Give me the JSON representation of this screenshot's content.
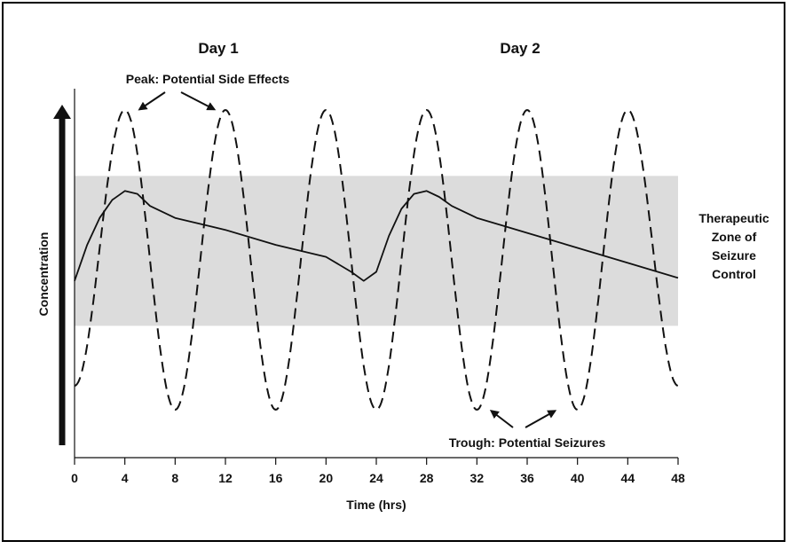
{
  "chart_data": {
    "type": "line",
    "xlabel": "Time (hrs)",
    "ylabel": "Concentration",
    "xlim": [
      0,
      48
    ],
    "x_ticks": [
      0,
      4,
      8,
      12,
      16,
      20,
      24,
      28,
      32,
      36,
      40,
      44,
      48
    ],
    "y_axis_arrow": true,
    "y_scale": "relative (no numeric ticks)",
    "day_labels": [
      {
        "text": "Day 1",
        "x": 12
      },
      {
        "text": "Day 2",
        "x": 36
      }
    ],
    "band": {
      "label_lines": [
        "Therapeutic",
        "Zone of",
        "Seizure",
        "Control"
      ],
      "color": "#dcdcdc",
      "y_range": [
        0.28,
        0.78
      ]
    },
    "series": [
      {
        "style": "dashed",
        "color": "#111111",
        "points": [
          [
            0,
            0.08
          ],
          [
            4,
            1.0
          ],
          [
            8,
            0.0
          ],
          [
            12,
            1.0
          ],
          [
            16,
            0.0
          ],
          [
            20,
            1.0
          ],
          [
            24,
            0.0
          ],
          [
            28,
            1.0
          ],
          [
            32,
            0.0
          ],
          [
            36,
            1.0
          ],
          [
            40,
            0.0
          ],
          [
            44,
            1.0
          ],
          [
            48,
            0.08
          ]
        ]
      },
      {
        "style": "solid",
        "color": "#111111",
        "points": [
          [
            0,
            0.43
          ],
          [
            1,
            0.55
          ],
          [
            2,
            0.64
          ],
          [
            3,
            0.7
          ],
          [
            4,
            0.73
          ],
          [
            5,
            0.72
          ],
          [
            6,
            0.68
          ],
          [
            8,
            0.64
          ],
          [
            12,
            0.6
          ],
          [
            16,
            0.55
          ],
          [
            20,
            0.51
          ],
          [
            22,
            0.46
          ],
          [
            23,
            0.43
          ],
          [
            24,
            0.46
          ],
          [
            25,
            0.58
          ],
          [
            26,
            0.67
          ],
          [
            27,
            0.72
          ],
          [
            28,
            0.73
          ],
          [
            29,
            0.71
          ],
          [
            30,
            0.68
          ],
          [
            32,
            0.64
          ],
          [
            36,
            0.59
          ],
          [
            40,
            0.54
          ],
          [
            44,
            0.49
          ],
          [
            48,
            0.44
          ]
        ]
      }
    ],
    "annotations": [
      {
        "text": "Peak: Potential Side Effects",
        "arrow_targets": [
          [
            4.6,
            0.99
          ],
          [
            11.4,
            0.99
          ]
        ]
      },
      {
        "text": "Trough: Potential Seizures",
        "arrow_targets": [
          [
            33.0,
            0.02
          ],
          [
            38.5,
            0.02
          ]
        ]
      }
    ]
  }
}
